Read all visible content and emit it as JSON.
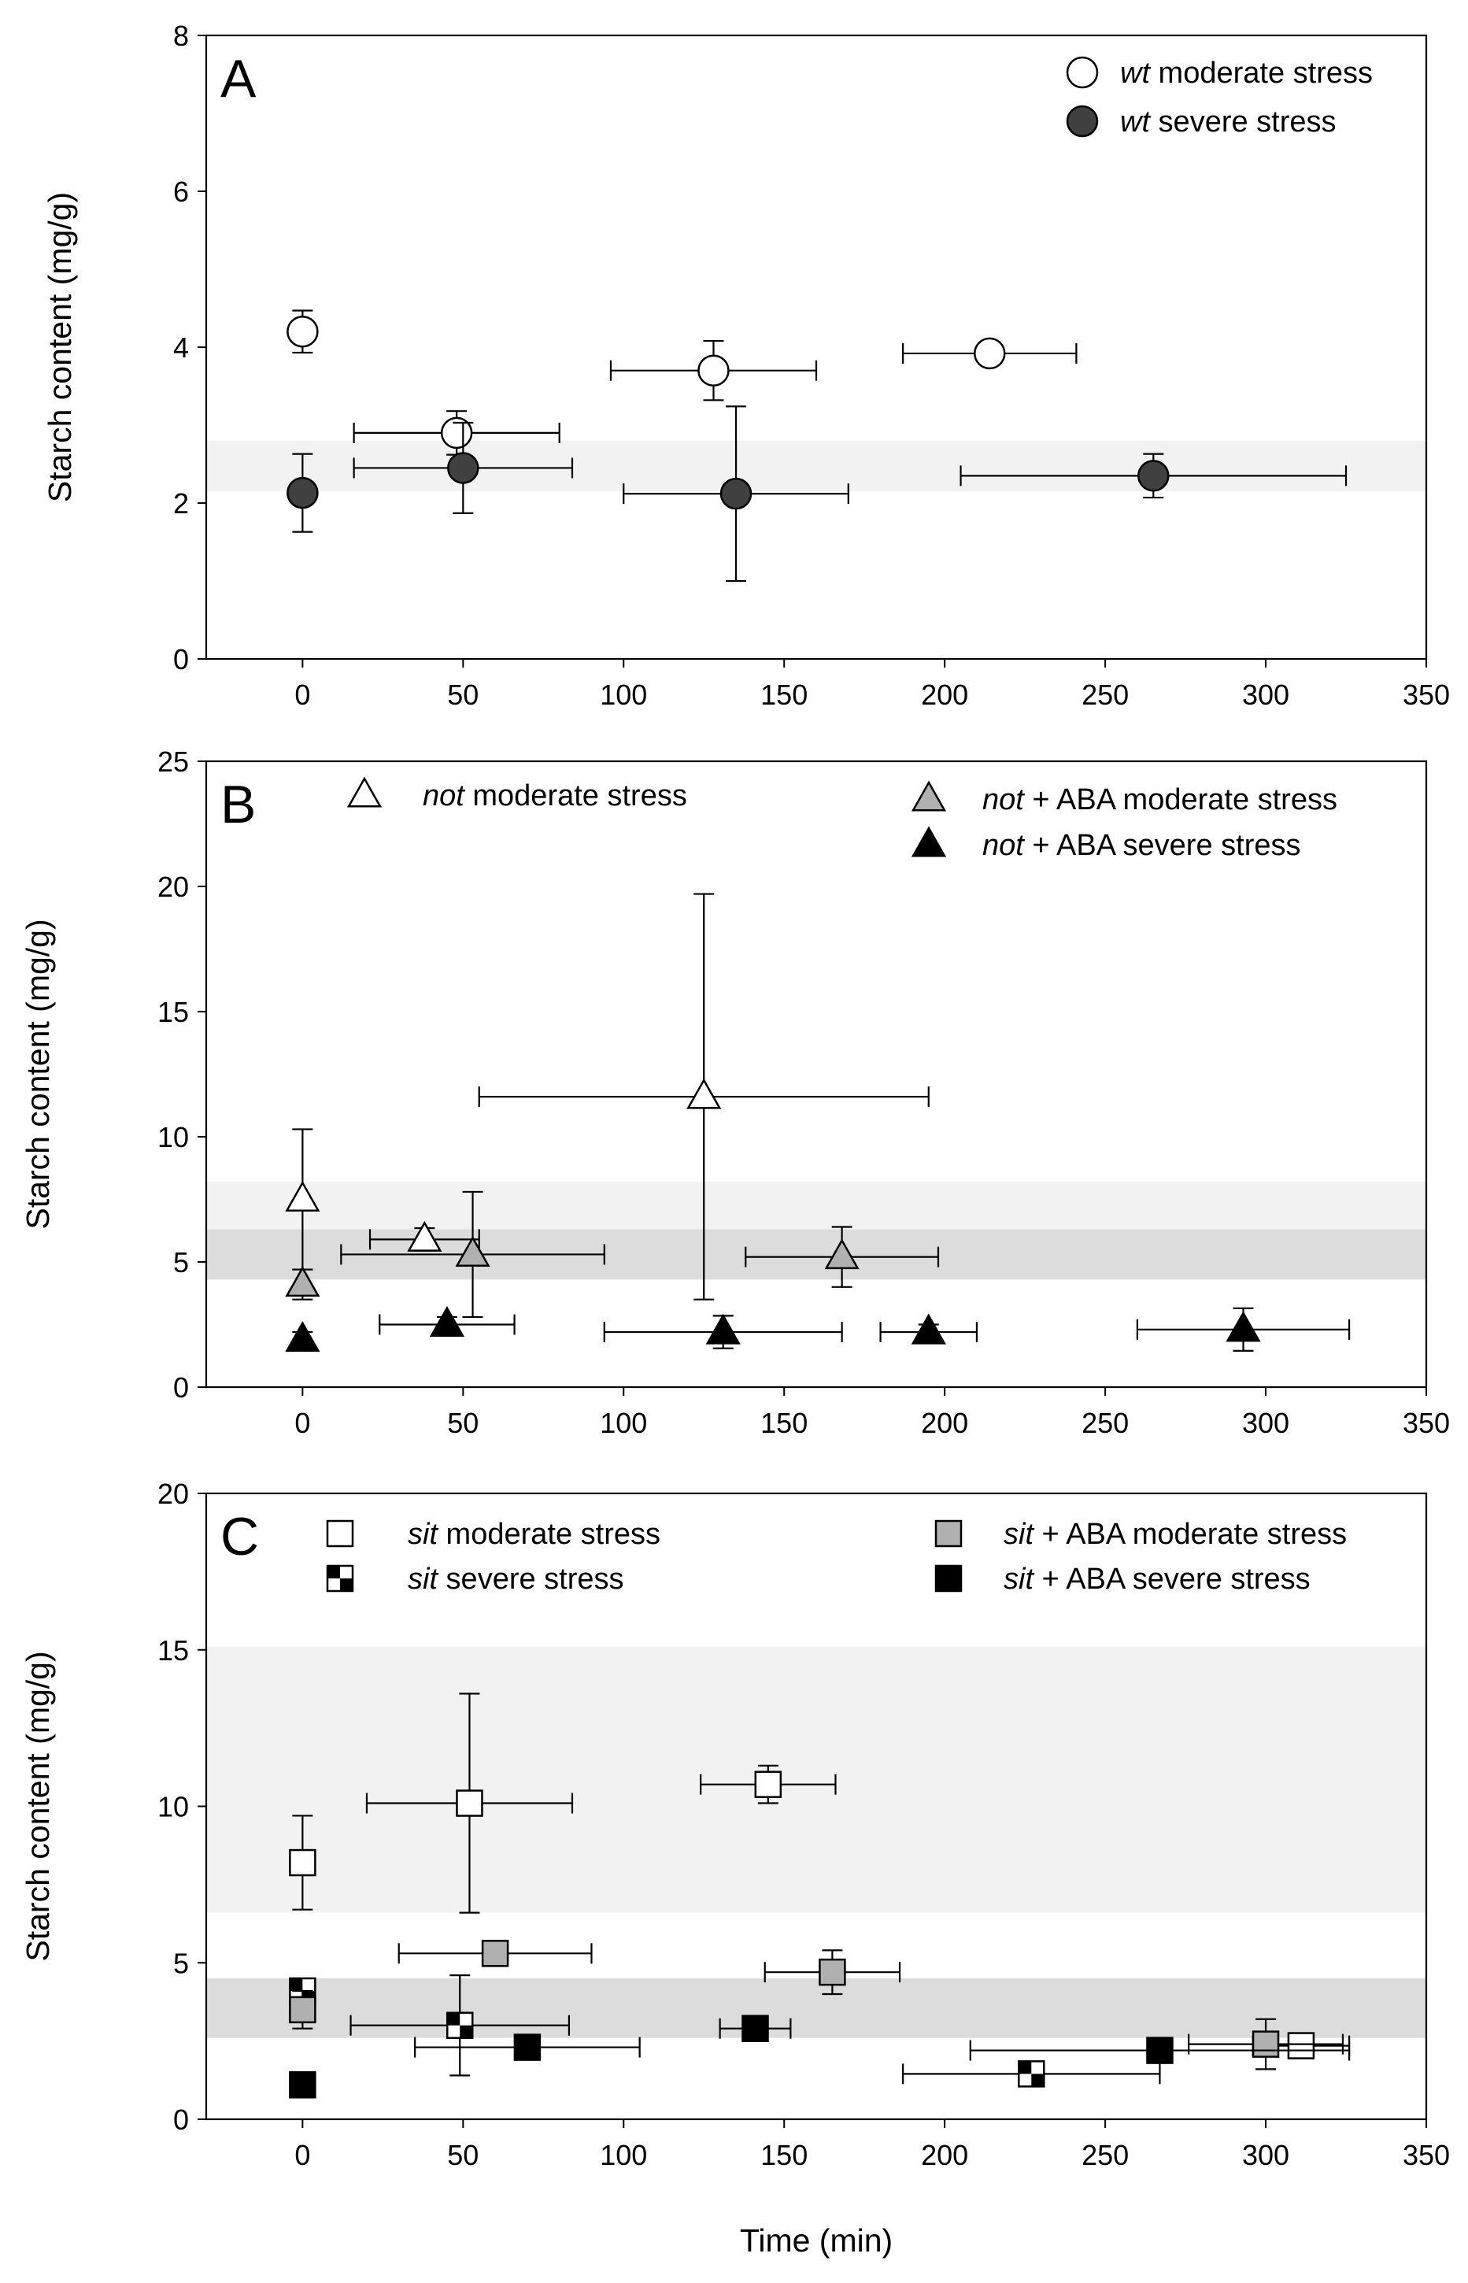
{
  "figure": {
    "xlabel": "Time (min)"
  },
  "chart_data": [
    {
      "type": "scatter",
      "panel": "A",
      "xlabel": "Time (min)",
      "ylabel": "Starch content (mg/g)",
      "xlim": [
        -30,
        350
      ],
      "ylim": [
        0,
        8
      ],
      "xticks": [
        0,
        50,
        100,
        150,
        200,
        250,
        300,
        350
      ],
      "yticks": [
        0,
        2,
        4,
        6,
        8
      ],
      "bands": [
        {
          "y0": 2.15,
          "y1": 2.8,
          "shade": "#f2f2f2"
        }
      ],
      "legend": [
        {
          "series": 0,
          "italic": "wt",
          "text": " moderate stress"
        },
        {
          "series": 1,
          "italic": "wt",
          "text": " severe stress"
        }
      ],
      "series": [
        {
          "name": "wt moderate stress",
          "marker": "circle",
          "fill": "#ffffff",
          "stroke": "#000000",
          "points": [
            {
              "x": 0,
              "y": 4.2,
              "yerr": 0.27
            },
            {
              "x": 48,
              "y": 2.9,
              "xerr": 32,
              "yerr": 0.28
            },
            {
              "x": 128,
              "y": 3.7,
              "xerr": 32,
              "yerr": 0.38
            },
            {
              "x": 214,
              "y": 3.92,
              "xerr": 27,
              "yerr": 0.1
            }
          ]
        },
        {
          "name": "wt severe stress",
          "marker": "circle",
          "fill": "#404040",
          "stroke": "#000000",
          "points": [
            {
              "x": 0,
              "y": 2.13,
              "yerr": 0.5
            },
            {
              "x": 50,
              "y": 2.45,
              "xerr": 34,
              "yerr": 0.58
            },
            {
              "x": 135,
              "y": 2.12,
              "xerr": 35,
              "yerr": 1.12
            },
            {
              "x": 265,
              "y": 2.35,
              "xerr": 60,
              "yerr": 0.28
            }
          ]
        }
      ]
    },
    {
      "type": "scatter",
      "panel": "B",
      "xlabel": "Time (min)",
      "ylabel": "Starch content (mg/g)",
      "xlim": [
        -30,
        350
      ],
      "ylim": [
        0,
        25
      ],
      "xticks": [
        0,
        50,
        100,
        150,
        200,
        250,
        300,
        350
      ],
      "yticks": [
        0,
        5,
        10,
        15,
        20,
        25
      ],
      "bands": [
        {
          "y0": 4.3,
          "y1": 8.2,
          "shade": "#f2f2f2"
        },
        {
          "y0": 4.3,
          "y1": 6.3,
          "shade": "#dcdcdc"
        }
      ],
      "legend": [
        {
          "series": 0,
          "italic": "not",
          "text": " moderate stress"
        },
        {
          "series": 1,
          "italic": "not",
          "text": " + ABA moderate stress"
        },
        {
          "series": 2,
          "italic": "not",
          "text": " + ABA severe stress"
        }
      ],
      "series": [
        {
          "name": "not moderate stress",
          "marker": "triangle",
          "fill": "#ffffff",
          "stroke": "#000000",
          "points": [
            {
              "x": 0,
              "y": 7.5,
              "yerr": 2.8
            },
            {
              "x": 38,
              "y": 5.9,
              "xerr": 17,
              "yerr": 0.45
            },
            {
              "x": 125,
              "y": 11.6,
              "xerr": 70,
              "yerr": 8.1
            }
          ]
        },
        {
          "name": "not + ABA moderate stress",
          "marker": "triangle",
          "fill": "#b0b0b0",
          "stroke": "#000000",
          "points": [
            {
              "x": 0,
              "y": 4.1,
              "yerr": 0.6
            },
            {
              "x": 53,
              "y": 5.3,
              "xerr": 41,
              "yerr": 2.5
            },
            {
              "x": 168,
              "y": 5.2,
              "xerr": 30,
              "yerr": 1.2
            }
          ]
        },
        {
          "name": "not + ABA severe stress",
          "marker": "triangle",
          "fill": "#000000",
          "stroke": "#000000",
          "points": [
            {
              "x": 0,
              "y": 1.9,
              "yerr": 0.3
            },
            {
              "x": 45,
              "y": 2.5,
              "xerr": 21,
              "yerr": 0.3
            },
            {
              "x": 131,
              "y": 2.2,
              "xerr": 37,
              "yerr": 0.65
            },
            {
              "x": 195,
              "y": 2.2,
              "xerr": 15,
              "yerr": 0.3
            },
            {
              "x": 293,
              "y": 2.3,
              "xerr": 33,
              "yerr": 0.85
            }
          ]
        }
      ]
    },
    {
      "type": "scatter",
      "panel": "C",
      "xlabel": "Time (min)",
      "ylabel": "Starch content (mg/g)",
      "xlim": [
        -30,
        350
      ],
      "ylim": [
        0,
        20
      ],
      "xticks": [
        0,
        50,
        100,
        150,
        200,
        250,
        300,
        350
      ],
      "yticks": [
        0,
        5,
        10,
        15,
        20
      ],
      "bands": [
        {
          "y0": 6.6,
          "y1": 15.1,
          "shade": "#f2f2f2"
        },
        {
          "y0": 2.6,
          "y1": 4.5,
          "shade": "#dcdcdc"
        }
      ],
      "legend": [
        {
          "series": 0,
          "italic": "sit",
          "text": " moderate stress"
        },
        {
          "series": 1,
          "italic": "sit",
          "text": " severe stress"
        },
        {
          "series": 2,
          "italic": "sit",
          "text": " + ABA moderate stress"
        },
        {
          "series": 3,
          "italic": "sit",
          "text": " + ABA severe stress"
        }
      ],
      "series": [
        {
          "name": "sit moderate stress",
          "marker": "square",
          "fill": "#ffffff",
          "stroke": "#000000",
          "points": [
            {
              "x": 0,
              "y": 8.2,
              "yerr": 1.5
            },
            {
              "x": 52,
              "y": 10.1,
              "xerr": 32,
              "yerr": 3.5
            },
            {
              "x": 145,
              "y": 10.7,
              "xerr": 21,
              "yerr": 0.6
            },
            {
              "x": 311,
              "y": 2.35,
              "xerr": 15,
              "yerr": 0.3
            }
          ]
        },
        {
          "name": "sit severe stress",
          "marker": "checker",
          "fill": "#ffffff",
          "stroke": "#000000",
          "points": [
            {
              "x": 0,
              "y": 4.1,
              "yerr": 0.3
            },
            {
              "x": 49,
              "y": 3.0,
              "xerr": 34,
              "yerr": 1.6
            },
            {
              "x": 227,
              "y": 1.45,
              "xerr": 40,
              "yerr": 0.25
            }
          ]
        },
        {
          "name": "sit + ABA moderate stress",
          "marker": "square",
          "fill": "#b0b0b0",
          "stroke": "#000000",
          "points": [
            {
              "x": 0,
              "y": 3.5,
              "yerr": 0.6
            },
            {
              "x": 60,
              "y": 5.3,
              "xerr": 30,
              "yerr": 0.2
            },
            {
              "x": 165,
              "y": 4.7,
              "xerr": 21,
              "yerr": 0.7
            },
            {
              "x": 300,
              "y": 2.4,
              "xerr": 24,
              "yerr": 0.8
            }
          ]
        },
        {
          "name": "sit + ABA severe stress",
          "marker": "square",
          "fill": "#000000",
          "stroke": "#000000",
          "points": [
            {
              "x": 0,
              "y": 1.1
            },
            {
              "x": 70,
              "y": 2.3,
              "xerr": 35,
              "yerr": 0.3
            },
            {
              "x": 141,
              "y": 2.9,
              "xerr": 11,
              "yerr": 0.25
            },
            {
              "x": 267,
              "y": 2.2,
              "xerr": 59,
              "yerr": 0.3
            }
          ]
        }
      ]
    }
  ]
}
